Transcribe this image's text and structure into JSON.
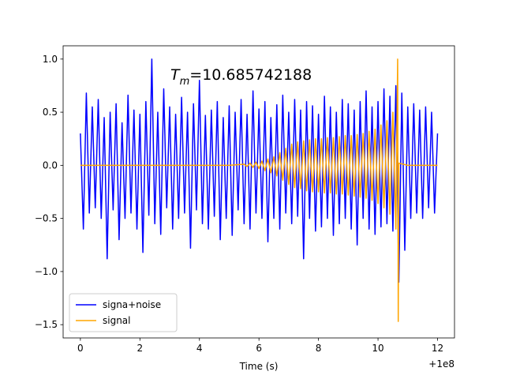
{
  "chart_data": {
    "type": "line",
    "annotation": {
      "symbol": "T",
      "subscript": "m",
      "text": "=10.685742188"
    },
    "xlabel": "Time (s)",
    "x_offset_label": "+1e8",
    "xlim": [
      -0.58,
      12.57
    ],
    "ylim": [
      -1.625,
      1.125
    ],
    "xticks": [
      0,
      2,
      4,
      6,
      8,
      10,
      12
    ],
    "yticks": [
      {
        "value": -1.5,
        "label": "−1.5"
      },
      {
        "value": -1.0,
        "label": "−1.0"
      },
      {
        "value": -0.5,
        "label": "−0.5"
      },
      {
        "value": 0.0,
        "label": "0.0"
      },
      {
        "value": 0.5,
        "label": "0.5"
      },
      {
        "value": 1.0,
        "label": "1.0"
      }
    ],
    "legend": "lower left",
    "series": [
      {
        "name": "signa+noise",
        "color": "#0000ff",
        "x": [
          0,
          0.1,
          0.2,
          0.3,
          0.4,
          0.5,
          0.6,
          0.7,
          0.8,
          0.9,
          1,
          1.1,
          1.2,
          1.3,
          1.4,
          1.5,
          1.6,
          1.7,
          1.8,
          1.9,
          2,
          2.1,
          2.2,
          2.3,
          2.4,
          2.5,
          2.6,
          2.7,
          2.8,
          2.9,
          3,
          3.1,
          3.2,
          3.3,
          3.4,
          3.5,
          3.6,
          3.7,
          3.8,
          3.9,
          4,
          4.1,
          4.2,
          4.3,
          4.4,
          4.5,
          4.6,
          4.7,
          4.8,
          4.9,
          5,
          5.1,
          5.2,
          5.3,
          5.4,
          5.5,
          5.6,
          5.7,
          5.8,
          5.9,
          6,
          6.1,
          6.2,
          6.3,
          6.4,
          6.5,
          6.6,
          6.7,
          6.8,
          6.9,
          7,
          7.1,
          7.2,
          7.3,
          7.4,
          7.5,
          7.6,
          7.7,
          7.8,
          7.9,
          8,
          8.1,
          8.2,
          8.3,
          8.4,
          8.5,
          8.6,
          8.7,
          8.8,
          8.9,
          9,
          9.1,
          9.2,
          9.3,
          9.4,
          9.5,
          9.6,
          9.7,
          9.8,
          9.9,
          10,
          10.1,
          10.2,
          10.3,
          10.4,
          10.5,
          10.6,
          10.7,
          10.8,
          10.9,
          11,
          11.1,
          11.2,
          11.3,
          11.4,
          11.5,
          11.6,
          11.7,
          11.8,
          11.9,
          12
        ],
        "values": [
          0.3,
          -0.6,
          0.68,
          -0.45,
          0.55,
          -0.4,
          0.62,
          -0.5,
          0.45,
          -0.88,
          0.5,
          -0.42,
          0.58,
          -0.7,
          0.4,
          -0.5,
          0.66,
          -0.45,
          0.52,
          -0.6,
          0.48,
          -0.82,
          0.6,
          -0.47,
          1.0,
          -0.55,
          0.5,
          -0.65,
          0.72,
          -0.4,
          0.55,
          -0.6,
          0.48,
          -0.5,
          0.64,
          -0.45,
          0.5,
          -0.78,
          0.58,
          -0.42,
          0.8,
          -0.55,
          0.47,
          -0.6,
          0.52,
          -0.48,
          0.6,
          -0.7,
          0.45,
          -0.5,
          0.56,
          -0.66,
          0.5,
          -0.42,
          0.62,
          -0.55,
          0.48,
          -0.6,
          0.7,
          -0.45,
          0.53,
          -0.5,
          0.6,
          -0.72,
          0.45,
          -0.5,
          0.57,
          -0.6,
          0.66,
          -0.45,
          0.5,
          -0.55,
          0.62,
          -0.48,
          0.52,
          -0.88,
          0.6,
          -0.5,
          0.56,
          -0.62,
          0.48,
          -0.58,
          0.65,
          -0.5,
          0.55,
          -0.66,
          0.5,
          -0.55,
          0.62,
          -0.5,
          0.58,
          -0.6,
          0.52,
          -0.75,
          0.6,
          -0.5,
          0.7,
          -0.6,
          0.55,
          -0.65,
          0.6,
          -0.58,
          0.72,
          -0.55,
          0.65,
          -0.62,
          0.75,
          -1.1,
          0.68,
          -0.8,
          0.55,
          -0.5,
          0.58,
          -0.45,
          0.52,
          -0.5,
          0.55,
          -0.4,
          0.5,
          -0.45,
          0.3
        ]
      },
      {
        "name": "signal",
        "color": "#ffa500",
        "x": [
          0,
          1,
          2,
          3,
          4,
          5,
          5.5,
          5.6,
          5.7,
          5.8,
          5.9,
          6,
          6.1,
          6.2,
          6.3,
          6.4,
          6.5,
          6.6,
          6.7,
          6.8,
          6.9,
          7,
          7.1,
          7.2,
          7.3,
          7.4,
          7.5,
          7.6,
          7.7,
          7.8,
          7.9,
          8,
          8.1,
          8.2,
          8.3,
          8.4,
          8.5,
          8.6,
          8.7,
          8.8,
          8.9,
          9,
          9.1,
          9.2,
          9.3,
          9.4,
          9.5,
          9.6,
          9.7,
          9.8,
          9.9,
          10,
          10.1,
          10.2,
          10.3,
          10.4,
          10.5,
          10.6,
          10.66,
          10.68,
          10.7,
          11,
          12
        ],
        "values": [
          0,
          0,
          0,
          0,
          0,
          0,
          0.01,
          -0.01,
          0.02,
          -0.02,
          0.03,
          -0.03,
          0.04,
          -0.05,
          0.06,
          -0.07,
          0.08,
          -0.1,
          0.12,
          -0.14,
          0.16,
          -0.18,
          0.2,
          -0.21,
          0.22,
          -0.22,
          0.23,
          -0.24,
          0.24,
          -0.25,
          0.25,
          -0.25,
          0.25,
          -0.26,
          0.26,
          -0.26,
          0.26,
          -0.27,
          0.27,
          -0.27,
          0.28,
          -0.28,
          0.28,
          -0.29,
          0.29,
          -0.3,
          0.3,
          -0.31,
          0.32,
          -0.33,
          0.34,
          -0.36,
          0.38,
          -0.4,
          0.42,
          -0.46,
          0.5,
          -0.6,
          1.0,
          -1.47,
          0.02,
          0,
          0
        ]
      }
    ]
  }
}
